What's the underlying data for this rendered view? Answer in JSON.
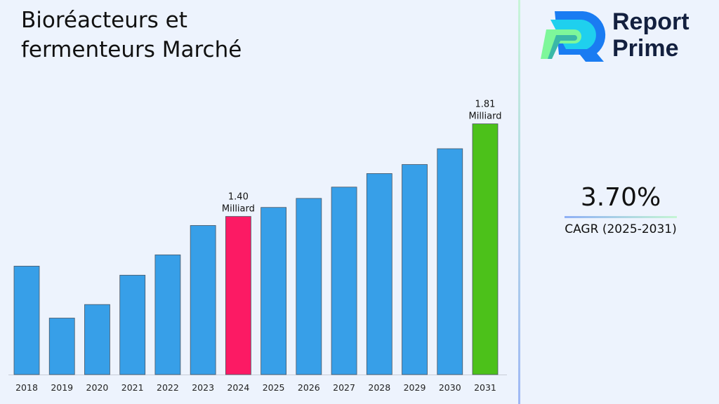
{
  "title": "Bioréacteurs et fermenteurs Marché",
  "logo": {
    "text_line1": "Report",
    "text_line2": "Prime"
  },
  "cagr": {
    "value": "3.70%",
    "label": "CAGR (2025-2031)"
  },
  "colors": {
    "bar": "#379fe8",
    "highlight_2024": "#fc1a64",
    "highlight_2031": "#4cc11a",
    "background": "#edf3fd"
  },
  "chart_data": {
    "type": "bar",
    "categories": [
      "2018",
      "2019",
      "2020",
      "2021",
      "2022",
      "2023",
      "2024",
      "2025",
      "2026",
      "2027",
      "2028",
      "2029",
      "2030",
      "2031"
    ],
    "values": [
      1.18,
      0.95,
      1.01,
      1.14,
      1.23,
      1.36,
      1.4,
      1.44,
      1.48,
      1.53,
      1.59,
      1.63,
      1.7,
      1.81
    ],
    "unit": "Milliard",
    "data_labels": [
      {
        "category": "2024",
        "value": "1.40",
        "unit": "Milliard"
      },
      {
        "category": "2031",
        "value": "1.81",
        "unit": "Milliard"
      }
    ],
    "ylim": [
      0.7,
      1.9
    ],
    "grid": false,
    "title": "Bioréacteurs et fermenteurs Marché",
    "xlabel": "",
    "ylabel": ""
  }
}
